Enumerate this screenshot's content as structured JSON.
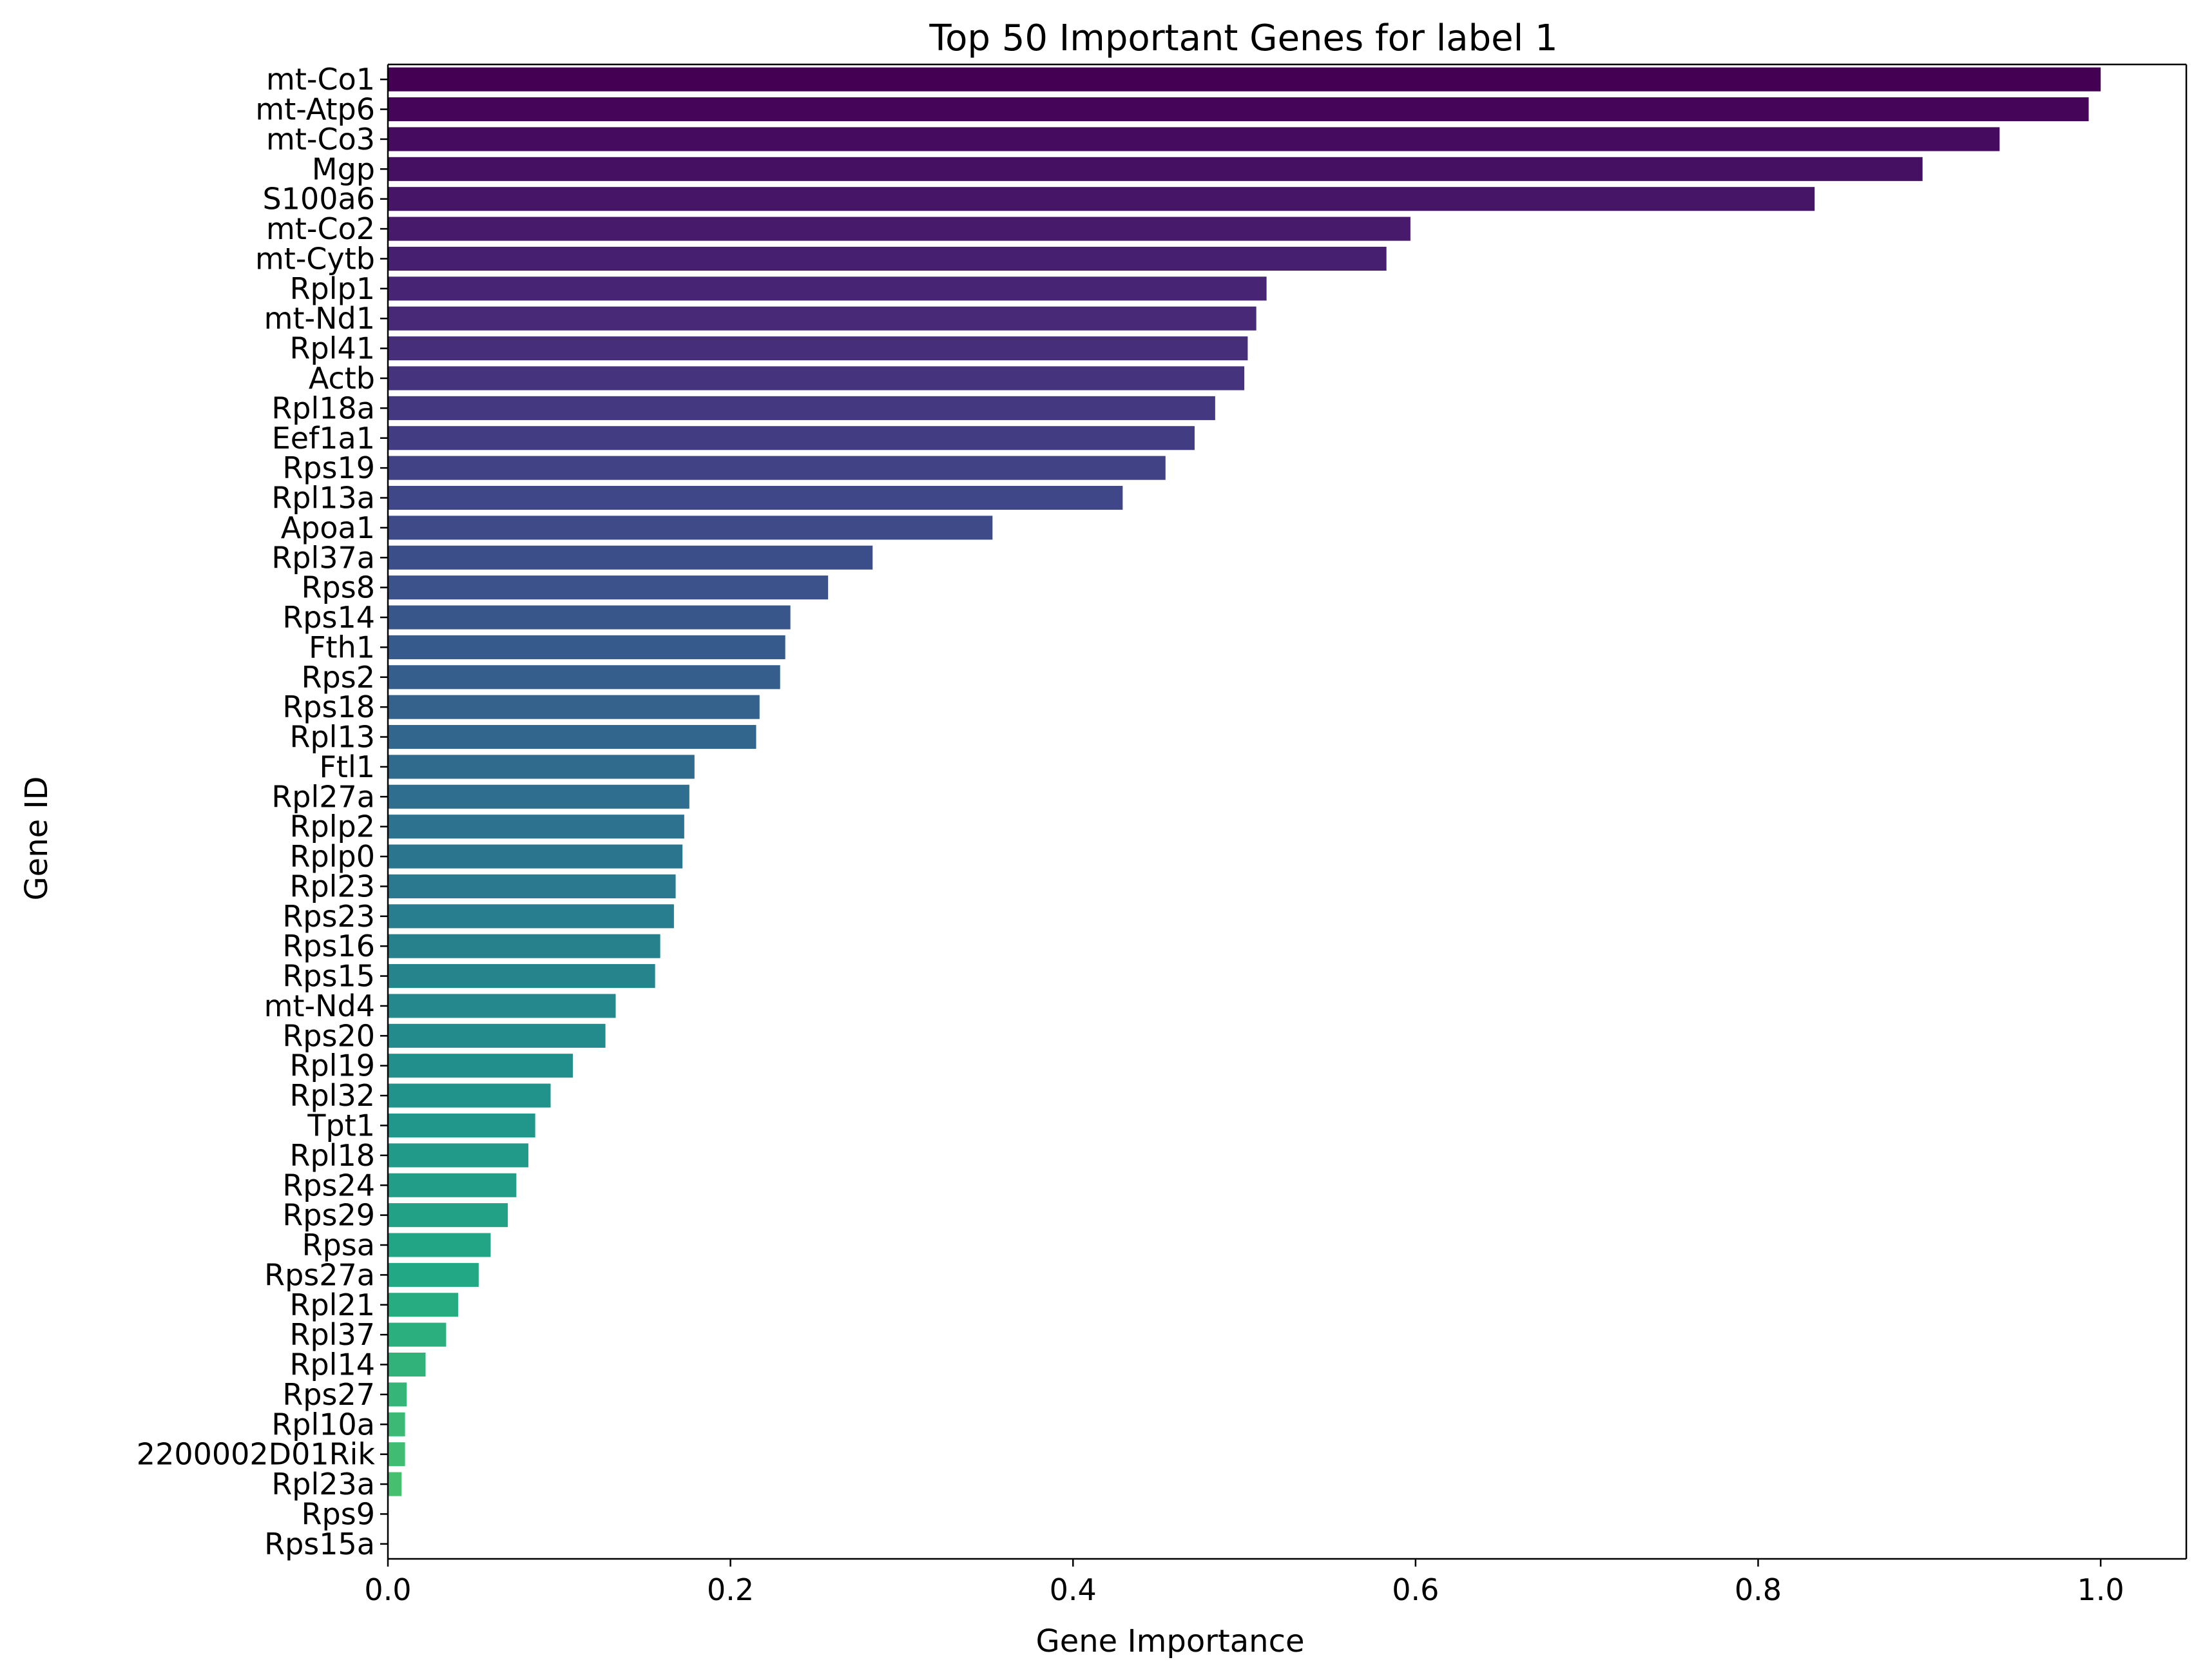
{
  "chart_data": {
    "type": "bar",
    "orientation": "horizontal",
    "title": "Top 50 Important Genes for label 1",
    "xlabel": "Gene Importance",
    "ylabel": "Gene ID",
    "xlim": [
      0.0,
      1.05
    ],
    "xticks": [
      "0.0",
      "0.2",
      "0.4",
      "0.6",
      "0.8",
      "1.0"
    ],
    "xtick_values": [
      0.0,
      0.2,
      0.4,
      0.6,
      0.8,
      1.0
    ],
    "grid": false,
    "legend": "none",
    "palette": "viridis",
    "categories": [
      "mt-Co1",
      "mt-Atp6",
      "mt-Co3",
      "Mgp",
      "S100a6",
      "mt-Co2",
      "mt-Cytb",
      "Rplp1",
      "mt-Nd1",
      "Rpl41",
      "Actb",
      "Rpl18a",
      "Eef1a1",
      "Rps19",
      "Rpl13a",
      "Apoa1",
      "Rpl37a",
      "Rps8",
      "Rps14",
      "Fth1",
      "Rps2",
      "Rps18",
      "Rpl13",
      "Ftl1",
      "Rpl27a",
      "Rplp2",
      "Rplp0",
      "Rpl23",
      "Rps23",
      "Rps16",
      "Rps15",
      "mt-Nd4",
      "Rps20",
      "Rpl19",
      "Rpl32",
      "Tpt1",
      "Rpl18",
      "Rps24",
      "Rps29",
      "Rpsa",
      "Rps27a",
      "Rpl21",
      "Rpl37",
      "Rpl14",
      "Rps27",
      "Rpl10a",
      "2200002D01Rik",
      "Rpl23a",
      "Rps9",
      "Rps15a"
    ],
    "values": [
      1.0,
      0.993,
      0.941,
      0.896,
      0.833,
      0.597,
      0.583,
      0.513,
      0.507,
      0.502,
      0.5,
      0.483,
      0.471,
      0.454,
      0.429,
      0.353,
      0.283,
      0.257,
      0.235,
      0.232,
      0.229,
      0.217,
      0.215,
      0.179,
      0.176,
      0.173,
      0.172,
      0.168,
      0.167,
      0.159,
      0.156,
      0.133,
      0.127,
      0.108,
      0.095,
      0.086,
      0.082,
      0.075,
      0.07,
      0.06,
      0.053,
      0.041,
      0.034,
      0.022,
      0.011,
      0.01,
      0.01,
      0.008,
      0.0,
      0.0
    ]
  }
}
